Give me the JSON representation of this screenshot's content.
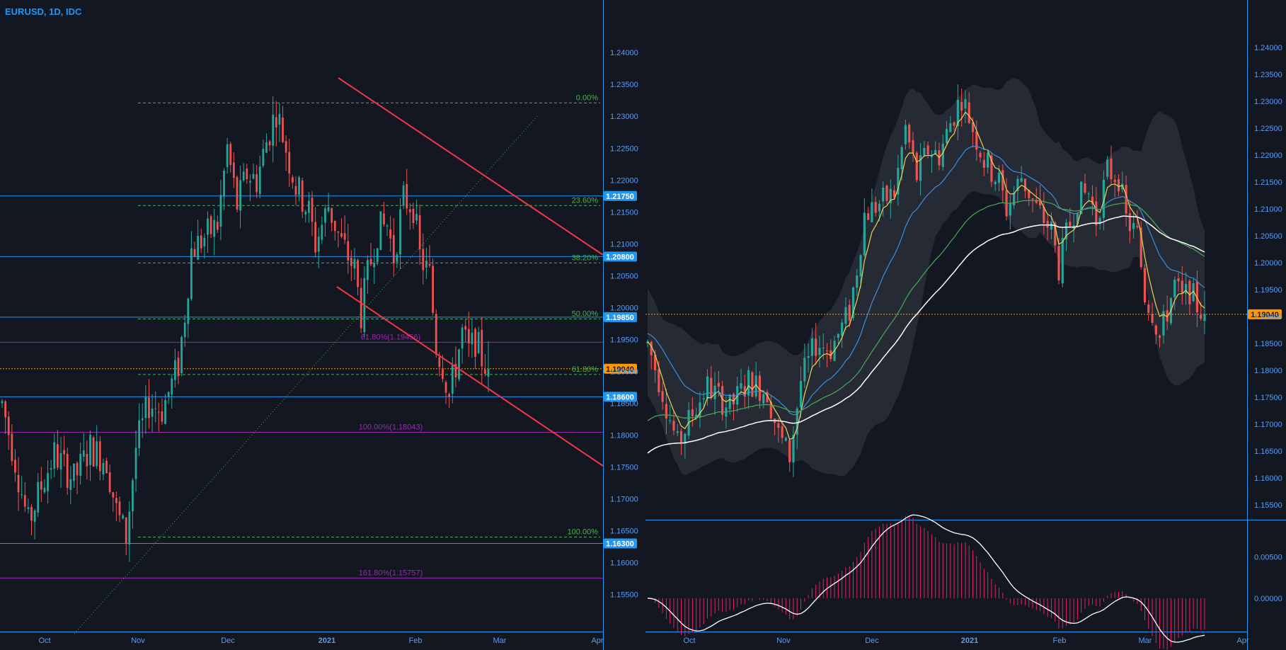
{
  "title": "EURUSD, 1D, IDC",
  "colors": {
    "background": "#131722",
    "up": "#26a69a",
    "down": "#ef5350",
    "axis": "#2196f3",
    "axis_text": "#5d9cec",
    "fib_text": "#4caf50",
    "fib_ext": "#9c27b0",
    "trend": "#f23645",
    "price_line": "#ff9800",
    "boll_fill": "#363a45",
    "ema_fast": "#e9d44f",
    "ema_mid": "#3c8fd8",
    "ema_slow": "#4ca85a",
    "sma_long": "#ffffff",
    "macd_line": "#ffffff",
    "macd_hist": "#e91e63"
  },
  "chart_data": [
    {
      "type": "candlestick",
      "panel": "left",
      "x_ticks": [
        "Oct",
        "Nov",
        "Dec",
        "2021",
        "Feb",
        "Mar",
        "Apr"
      ],
      "y_ticks": [
        "1.24000",
        "1.23500",
        "1.23000",
        "1.22500",
        "1.22000",
        "1.21500",
        "1.21000",
        "1.20500",
        "1.20000",
        "1.19500",
        "1.19000",
        "1.18500",
        "1.18000",
        "1.17500",
        "1.17000",
        "1.16500",
        "1.16000",
        "1.15500"
      ],
      "ylim": [
        1.1515,
        1.2438
      ],
      "price_tag": "1.19040",
      "level_tags": [
        "1.21750",
        "1.20800",
        "1.19850",
        "1.18600",
        "1.16300"
      ],
      "horizontal_levels": [
        1.2175,
        1.208,
        1.1985,
        1.186,
        1.163
      ],
      "fib_retracement": [
        {
          "label": "0.00%",
          "price": 1.2321
        },
        {
          "label": "23.60%",
          "price": 1.216
        },
        {
          "label": "38.20%",
          "price": 1.207
        },
        {
          "label": "50.00%",
          "price": 1.1982
        },
        {
          "label": "61.80%",
          "price": 1.1895
        },
        {
          "label": "100.00%",
          "price": 1.164
        }
      ],
      "fib_extension": [
        {
          "label": "61.80%(1.19456)",
          "price": 1.19456
        },
        {
          "label": "100.00%(1.18043)",
          "price": 1.18043
        },
        {
          "label": "161.80%(1.15757)",
          "price": 1.15757
        }
      ]
    },
    {
      "type": "candlestick",
      "panel": "right",
      "x_ticks": [
        "Oct",
        "Nov",
        "Dec",
        "2021",
        "Feb",
        "Mar",
        "Apr"
      ],
      "y_ticks": [
        "1.24000",
        "1.23500",
        "1.23000",
        "1.22500",
        "1.22000",
        "1.21500",
        "1.21000",
        "1.20500",
        "1.20000",
        "1.19500",
        "1.19000",
        "1.18500",
        "1.18000",
        "1.17500",
        "1.17000",
        "1.16500",
        "1.16000",
        "1.15500"
      ],
      "ylim": [
        1.153,
        1.2445
      ],
      "price_tag": "1.19040",
      "indicators": [
        "bollinger-bands",
        "ema-fast",
        "ema-mid",
        "ema-slow",
        "sma-long"
      ]
    },
    {
      "type": "line",
      "panel": "macd",
      "y_ticks": [
        "0.00500",
        "0.00000"
      ],
      "ylim": [
        -0.0037,
        0.0088
      ]
    }
  ]
}
